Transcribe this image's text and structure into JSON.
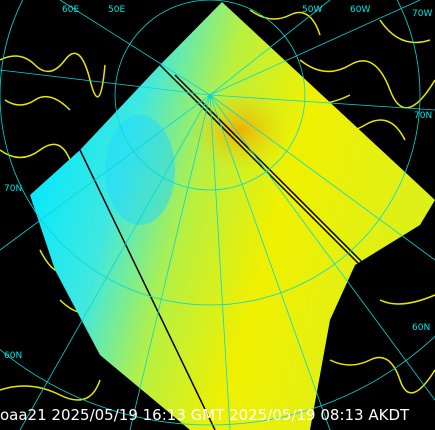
{
  "caption": "oaa21 2025/05/19 16:13 GMT 2025/05/19 08:13 AKDT",
  "graticule_labels": [
    "60E",
    "50E",
    "50W",
    "60W",
    "70W",
    "70N",
    "60N",
    "70N",
    "60N"
  ]
}
